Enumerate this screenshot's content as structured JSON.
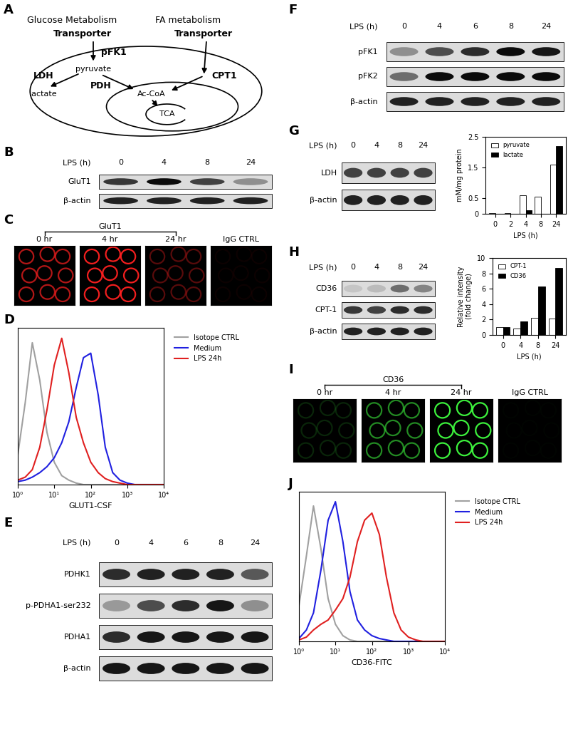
{
  "diagram": {
    "panel": "A",
    "labels": {
      "glucose_title": "Glucose Metabolism",
      "fa_title": "FA metabolism",
      "glucose_transporter": "Transporter",
      "fa_transporter": "Transporter",
      "glycolysis_enzyme": "pFK1",
      "pyruvate": "pyruvate",
      "ldh": "LDH",
      "lactate": "lactate",
      "pdh": "PDH",
      "acetyl_coa": "Ac-CoA",
      "cpt1": "CPT1",
      "tca": "TCA"
    }
  },
  "blots": [
    {
      "panel": "B",
      "header": "LPS (h)",
      "lanes": [
        "0",
        "4",
        "8",
        "24"
      ],
      "rows": [
        {
          "label": "GluT1",
          "intensity": [
            0.75,
            0.95,
            0.7,
            0.35
          ]
        },
        {
          "label": "β-actin",
          "intensity": [
            0.85,
            0.85,
            0.85,
            0.85
          ]
        }
      ]
    },
    {
      "panel": "E",
      "header": "LPS (h)",
      "lanes": [
        "0",
        "4",
        "6",
        "8",
        "24"
      ],
      "rows": [
        {
          "label": "PDHK1",
          "intensity": [
            0.8,
            0.85,
            0.85,
            0.85,
            0.6
          ]
        },
        {
          "label": "p-PDHA1-ser232",
          "intensity": [
            0.3,
            0.65,
            0.8,
            0.9,
            0.35
          ]
        },
        {
          "label": "PDHA1",
          "intensity": [
            0.8,
            0.9,
            0.9,
            0.9,
            0.9
          ]
        },
        {
          "label": "β-actin",
          "intensity": [
            0.9,
            0.9,
            0.9,
            0.9,
            0.9
          ]
        }
      ]
    },
    {
      "panel": "F",
      "header": "LPS (h)",
      "lanes": [
        "0",
        "4",
        "6",
        "8",
        "24"
      ],
      "rows": [
        {
          "label": "pFK1",
          "intensity": [
            0.35,
            0.65,
            0.8,
            0.95,
            0.9
          ]
        },
        {
          "label": "pFK2",
          "intensity": [
            0.5,
            0.95,
            0.95,
            0.95,
            0.95
          ]
        },
        {
          "label": "β-actin",
          "intensity": [
            0.85,
            0.85,
            0.85,
            0.85,
            0.85
          ]
        }
      ]
    },
    {
      "panel": "G",
      "header": "LPS (h)",
      "lanes": [
        "0",
        "4",
        "8",
        "24"
      ],
      "rows": [
        {
          "label": "LDH",
          "intensity": [
            0.7,
            0.7,
            0.7,
            0.7
          ]
        },
        {
          "label": "β-actin",
          "intensity": [
            0.85,
            0.85,
            0.85,
            0.85
          ]
        }
      ]
    },
    {
      "panel": "H",
      "header": "LPS (h)",
      "lanes": [
        "0",
        "4",
        "8",
        "24"
      ],
      "rows": [
        {
          "label": "CD36",
          "intensity": [
            0.1,
            0.15,
            0.5,
            0.4
          ]
        },
        {
          "label": "CPT-1",
          "intensity": [
            0.75,
            0.7,
            0.8,
            0.8
          ]
        },
        {
          "label": "β-actin",
          "intensity": [
            0.85,
            0.85,
            0.85,
            0.85
          ]
        }
      ]
    }
  ],
  "images": [
    {
      "panel": "C",
      "color": "#ff2020",
      "bracket": {
        "text": "GluT1",
        "over": [
          "0 hr",
          "4 hr",
          "24 hr"
        ]
      },
      "panels": [
        {
          "label": "0 hr",
          "intensity": 0.7
        },
        {
          "label": "4 hr",
          "intensity": 0.95
        },
        {
          "label": "24 hr",
          "intensity": 0.35
        },
        {
          "label": "IgG CTRL",
          "intensity": 0.05
        }
      ]
    },
    {
      "panel": "I",
      "color": "#40ff40",
      "bracket": {
        "text": "CD36",
        "over": [
          "0 hr",
          "4 hr",
          "24 hr"
        ]
      },
      "panels": [
        {
          "label": "0 hr",
          "intensity": 0.15
        },
        {
          "label": "4 hr",
          "intensity": 0.55
        },
        {
          "label": "24 hr",
          "intensity": 0.95
        },
        {
          "label": "IgG CTRL",
          "intensity": 0.02
        }
      ]
    }
  ],
  "chart_data": [
    {
      "panel": "D",
      "type": "line",
      "x_label": "GLUT1-CSF",
      "log": "x",
      "legend": "right",
      "tick_labels": "x",
      "x": [
        1,
        1.6,
        2.5,
        4,
        6.3,
        10,
        16,
        25,
        40,
        63,
        100,
        160,
        250,
        400,
        630,
        1000,
        1600,
        2500,
        4000,
        6300,
        10000
      ],
      "xlim": [
        1,
        10000
      ],
      "ylim": [
        0,
        105
      ],
      "xticks": [
        {
          "value": 1,
          "label": "10⁰"
        },
        {
          "value": 10,
          "label": "10¹"
        },
        {
          "value": 100,
          "label": "10²"
        },
        {
          "value": 1000,
          "label": "10³"
        },
        {
          "value": 10000,
          "label": "10⁴"
        }
      ],
      "series": [
        {
          "name": "Isotope CTRL",
          "color": "#a0a0a0",
          "values": [
            20,
            55,
            95,
            70,
            35,
            15,
            6,
            3,
            1,
            0,
            0,
            0,
            0,
            0,
            0,
            0,
            0,
            0,
            0,
            0,
            0
          ]
        },
        {
          "name": "Medium",
          "color": "#2020e0",
          "values": [
            2,
            3,
            5,
            8,
            12,
            18,
            28,
            42,
            65,
            85,
            88,
            60,
            25,
            8,
            3,
            1,
            0,
            0,
            0,
            0,
            0
          ]
        },
        {
          "name": "LPS 24h",
          "color": "#e02020",
          "values": [
            3,
            5,
            10,
            25,
            50,
            80,
            98,
            75,
            45,
            28,
            15,
            8,
            4,
            2,
            1,
            0,
            0,
            0,
            0,
            0,
            0
          ]
        }
      ]
    },
    {
      "panel": "G",
      "type": "bar",
      "x_label": "LPS (h)",
      "y_label": "mM/mg protein",
      "legend": "upper left",
      "categories": [
        "0",
        "2",
        "4",
        "8",
        "24"
      ],
      "ylim": [
        0,
        2.5
      ],
      "yticks": [
        0,
        0.5,
        1.5,
        2.5
      ],
      "series": [
        {
          "name": "pyruvate",
          "color": "#ffffff",
          "values": [
            0.03,
            0.03,
            0.6,
            0.55,
            1.6
          ]
        },
        {
          "name": "lactate",
          "color": "#000000",
          "values": [
            0,
            0,
            0.12,
            0,
            2.2
          ]
        }
      ]
    },
    {
      "panel": "H",
      "type": "bar",
      "x_label": "LPS (h)",
      "y_label": "Relative intensity\n(fold change)",
      "legend": "upper left",
      "categories": [
        "0",
        "4",
        "8",
        "24"
      ],
      "ylim": [
        0,
        10
      ],
      "yticks": [
        0,
        2,
        4,
        6,
        8,
        10
      ],
      "series": [
        {
          "name": "CPT-1",
          "color": "#ffffff",
          "values": [
            1,
            0.8,
            2.2,
            2.1
          ]
        },
        {
          "name": "CD36",
          "color": "#000000",
          "values": [
            1,
            1.8,
            6.3,
            8.7
          ]
        }
      ]
    },
    {
      "panel": "J",
      "type": "line",
      "x_label": "CD36-FITC",
      "log": "x",
      "legend": "right",
      "tick_labels": "x",
      "x": [
        1,
        1.6,
        2.5,
        4,
        6.3,
        10,
        16,
        25,
        40,
        63,
        100,
        160,
        250,
        400,
        630,
        1000,
        1600,
        2500,
        4000,
        6300,
        10000
      ],
      "xlim": [
        1,
        10000
      ],
      "ylim": [
        0,
        105
      ],
      "xticks": [
        {
          "value": 1,
          "label": "10⁰"
        },
        {
          "value": 10,
          "label": "10¹"
        },
        {
          "value": 100,
          "label": "10²"
        },
        {
          "value": 1000,
          "label": "10³"
        },
        {
          "value": 10000,
          "label": "10⁴"
        }
      ],
      "series": [
        {
          "name": "Isotope CTRL",
          "color": "#a0a0a0",
          "values": [
            25,
            60,
            95,
            65,
            30,
            12,
            4,
            1,
            0,
            0,
            0,
            0,
            0,
            0,
            0,
            0,
            0,
            0,
            0,
            0,
            0
          ]
        },
        {
          "name": "Medium",
          "color": "#2020e0",
          "values": [
            2,
            8,
            20,
            50,
            85,
            98,
            70,
            35,
            15,
            8,
            4,
            2,
            1,
            0,
            0,
            0,
            0,
            0,
            0,
            0,
            0
          ]
        },
        {
          "name": "LPS 24h",
          "color": "#e02020",
          "values": [
            1,
            3,
            8,
            12,
            15,
            22,
            30,
            45,
            70,
            85,
            90,
            75,
            45,
            20,
            8,
            3,
            1,
            0,
            0,
            0,
            0
          ]
        }
      ]
    }
  ]
}
